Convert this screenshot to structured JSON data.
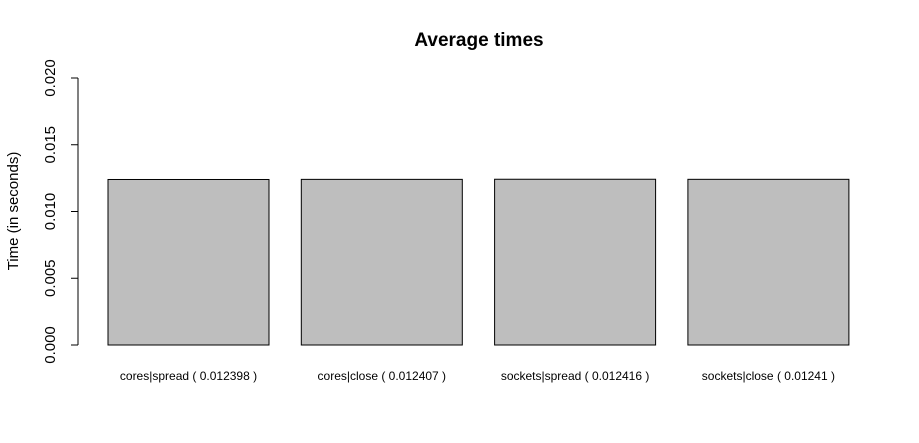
{
  "chart_data": {
    "type": "bar",
    "title": "Average times",
    "xlabel": "",
    "ylabel": "Time (in seconds)",
    "ylim": [
      0,
      0.02
    ],
    "yticks": [
      "0.000",
      "0.005",
      "0.010",
      "0.015",
      "0.020"
    ],
    "categories": [
      "cores|spread ( 0.012398 )",
      "cores|close ( 0.012407 )",
      "sockets|spread ( 0.012416 )",
      "sockets|close ( 0.01241 )"
    ],
    "values": [
      0.012398,
      0.012407,
      0.012416,
      0.01241
    ],
    "bar_color": "#bebebe",
    "grid": false
  }
}
